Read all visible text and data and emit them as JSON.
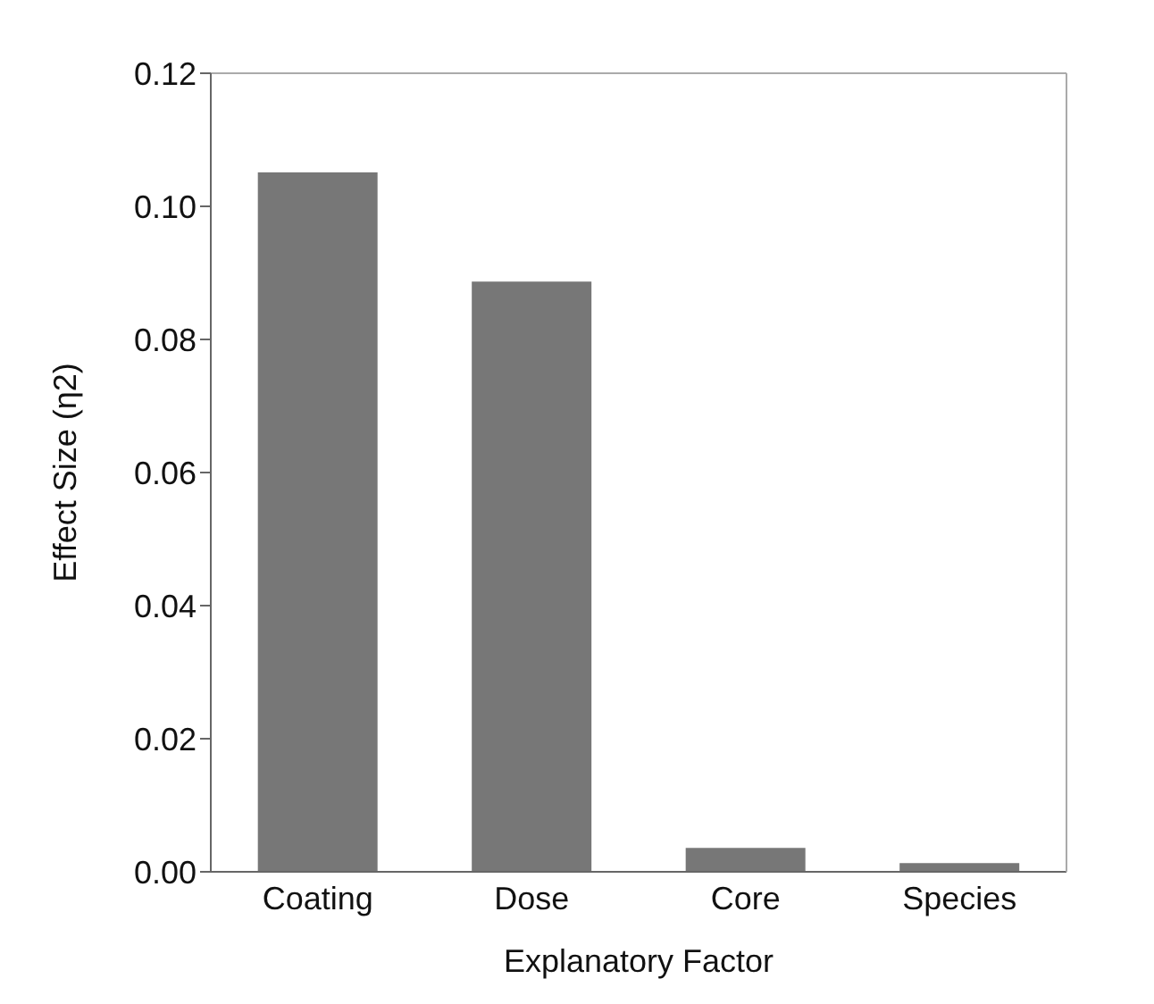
{
  "chart_data": {
    "type": "bar",
    "xlabel": "Explanatory Factor",
    "ylabel": "Effect Size (η2)",
    "categories": [
      "Coating",
      "Dose",
      "Core",
      "Species"
    ],
    "values": [
      0.1051,
      0.0887,
      0.0036,
      0.0013
    ],
    "color": "#777777",
    "ylim": [
      0,
      0.12
    ],
    "yticks": [
      {
        "value": 0,
        "label": "0.00"
      },
      {
        "value": 0.02,
        "label": "0.02"
      },
      {
        "value": 0.04,
        "label": "0.04"
      },
      {
        "value": 0.06,
        "label": "0.06"
      },
      {
        "value": 0.08,
        "label": "0.08"
      },
      {
        "value": 0.1,
        "label": "0.10"
      },
      {
        "value": 0.12,
        "label": "0.12"
      }
    ],
    "grid": false,
    "legend": false
  }
}
